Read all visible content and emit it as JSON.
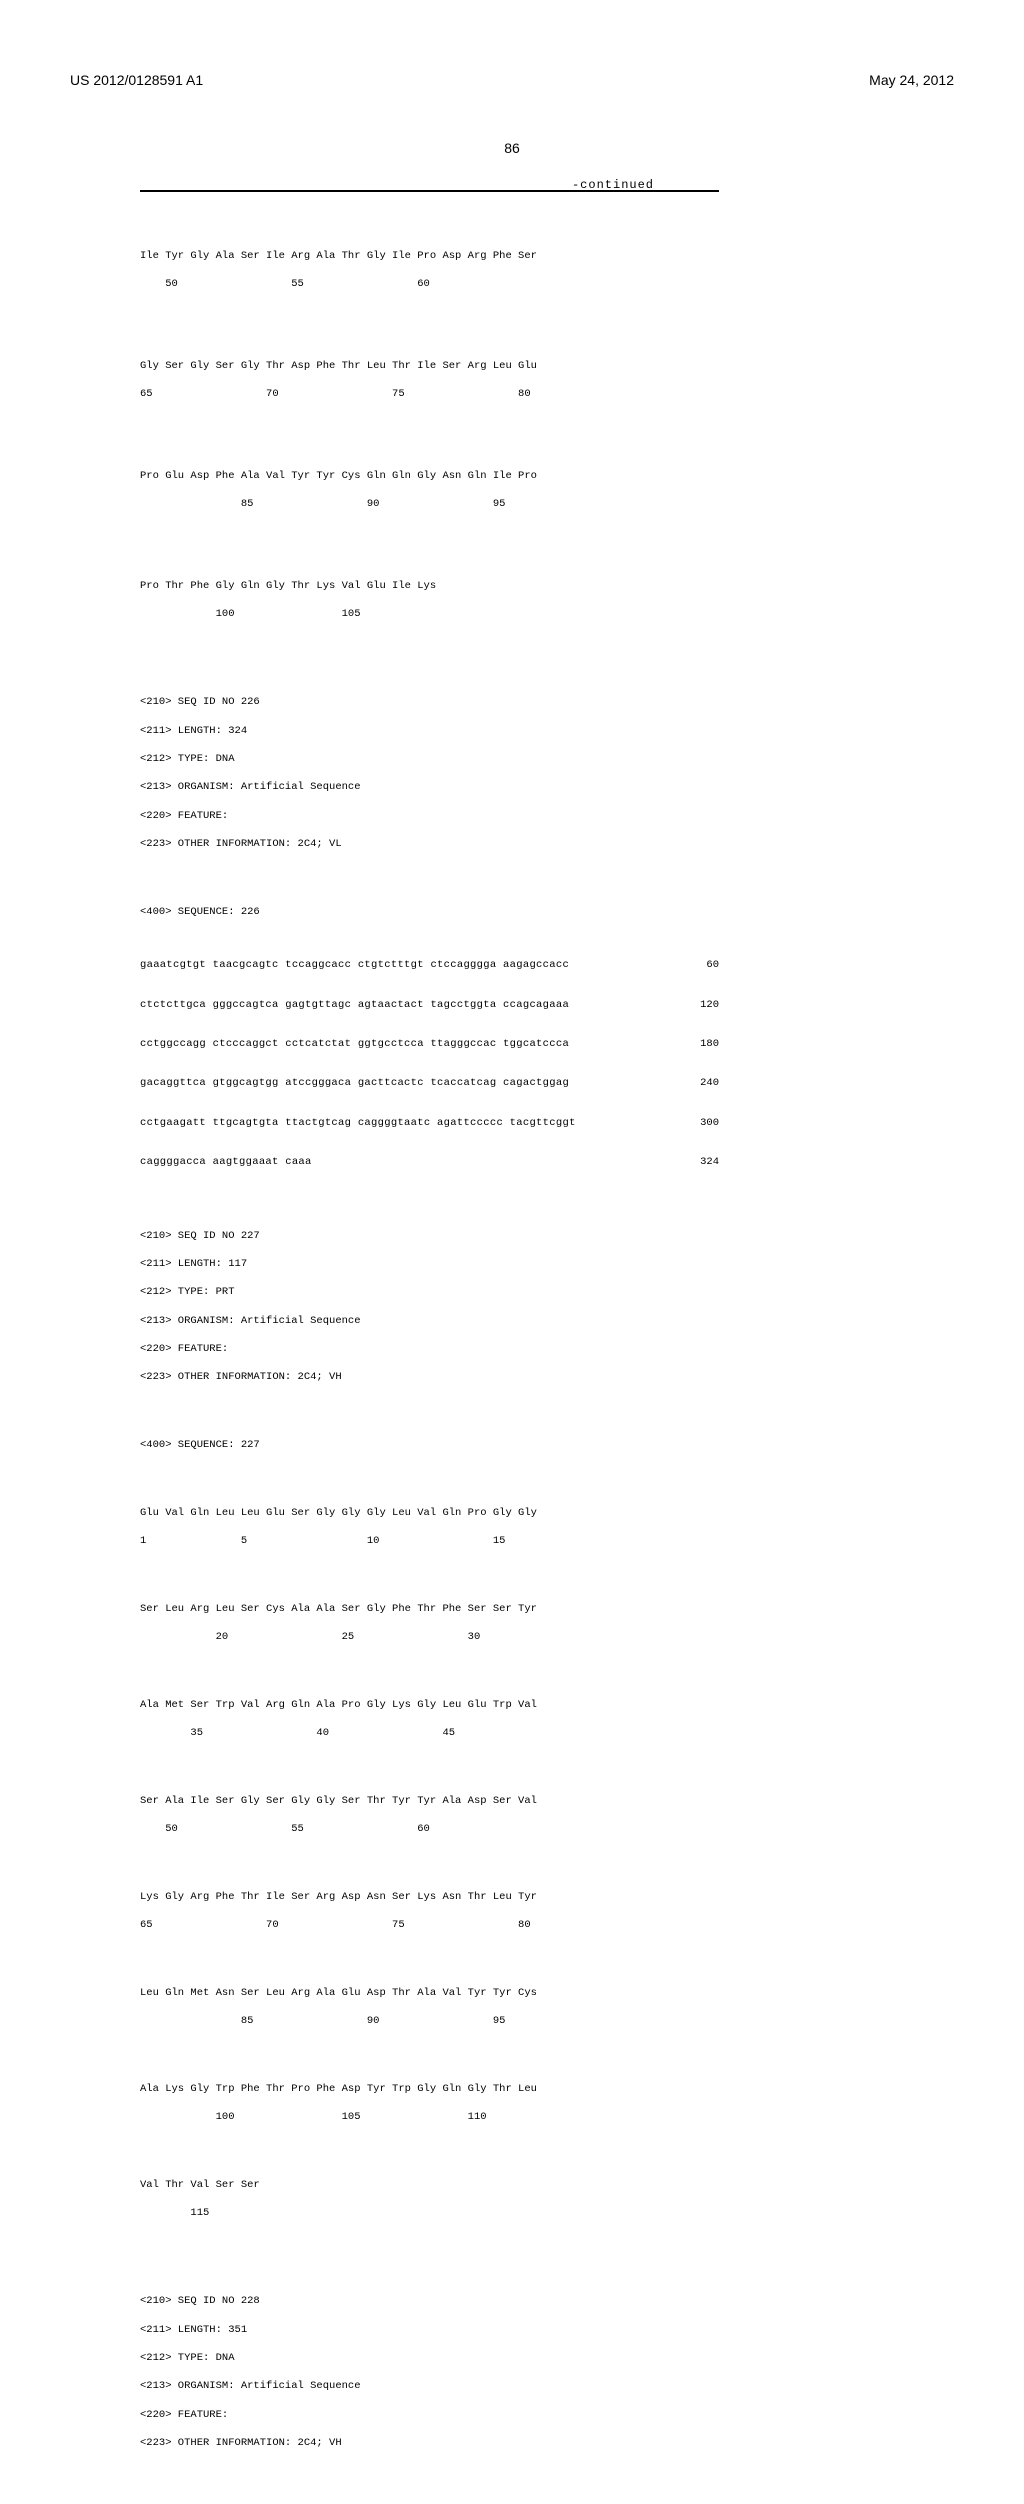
{
  "header": {
    "pub_number": "US 2012/0128591 A1",
    "pub_date": "May 24, 2012"
  },
  "page_number": "86",
  "continued": "-continued",
  "rows": {
    "r1a": "Ile Tyr Gly Ala Ser Ile Arg Ala Thr Gly Ile Pro Asp Arg Phe Ser",
    "r1b": "    50                  55                  60",
    "r2a": "Gly Ser Gly Ser Gly Thr Asp Phe Thr Leu Thr Ile Ser Arg Leu Glu",
    "r2b": "65                  70                  75                  80",
    "r3a": "Pro Glu Asp Phe Ala Val Tyr Tyr Cys Gln Gln Gly Asn Gln Ile Pro",
    "r3b": "                85                  90                  95",
    "r4a": "Pro Thr Phe Gly Gln Gly Thr Lys Val Glu Ile Lys",
    "r4b": "            100                 105",
    "h226_1": "<210> SEQ ID NO 226",
    "h226_2": "<211> LENGTH: 324",
    "h226_3": "<212> TYPE: DNA",
    "h226_4": "<213> ORGANISM: Artificial Sequence",
    "h226_5": "<220> FEATURE:",
    "h226_6": "<223> OTHER INFORMATION: 2C4; VL",
    "h226_7": "<400> SEQUENCE: 226",
    "d1s": "gaaatcgtgt taacgcagtc tccaggcacc ctgtctttgt ctccagggga aagagccacc",
    "d1n": "60",
    "d2s": "ctctcttgca gggccagtca gagtgttagc agtaactact tagcctggta ccagcagaaa",
    "d2n": "120",
    "d3s": "cctggccagg ctcccaggct cctcatctat ggtgcctcca ttagggccac tggcatccca",
    "d3n": "180",
    "d4s": "gacaggttca gtggcagtgg atccgggaca gacttcactc tcaccatcag cagactggag",
    "d4n": "240",
    "d5s": "cctgaagatt ttgcagtgta ttactgtcag caggggtaatc agattccccc tacgttcggt",
    "d5n": "300",
    "d6s": "caggggacca aagtggaaat caaa",
    "d6n": "324",
    "h227_1": "<210> SEQ ID NO 227",
    "h227_2": "<211> LENGTH: 117",
    "h227_3": "<212> TYPE: PRT",
    "h227_4": "<213> ORGANISM: Artificial Sequence",
    "h227_5": "<220> FEATURE:",
    "h227_6": "<223> OTHER INFORMATION: 2C4; VH",
    "h227_7": "<400> SEQUENCE: 227",
    "p1a": "Glu Val Gln Leu Leu Glu Ser Gly Gly Gly Leu Val Gln Pro Gly Gly",
    "p1b": "1               5                   10                  15",
    "p2a": "Ser Leu Arg Leu Ser Cys Ala Ala Ser Gly Phe Thr Phe Ser Ser Tyr",
    "p2b": "            20                  25                  30",
    "p3a": "Ala Met Ser Trp Val Arg Gln Ala Pro Gly Lys Gly Leu Glu Trp Val",
    "p3b": "        35                  40                  45",
    "p4a": "Ser Ala Ile Ser Gly Ser Gly Gly Ser Thr Tyr Tyr Ala Asp Ser Val",
    "p4b": "    50                  55                  60",
    "p5a": "Lys Gly Arg Phe Thr Ile Ser Arg Asp Asn Ser Lys Asn Thr Leu Tyr",
    "p5b": "65                  70                  75                  80",
    "p6a": "Leu Gln Met Asn Ser Leu Arg Ala Glu Asp Thr Ala Val Tyr Tyr Cys",
    "p6b": "                85                  90                  95",
    "p7a": "Ala Lys Gly Trp Phe Thr Pro Phe Asp Tyr Trp Gly Gln Gly Thr Leu",
    "p7b": "            100                 105                 110",
    "p8a": "Val Thr Val Ser Ser",
    "p8b": "        115",
    "h228_1": "<210> SEQ ID NO 228",
    "h228_2": "<211> LENGTH: 351",
    "h228_3": "<212> TYPE: DNA",
    "h228_4": "<213> ORGANISM: Artificial Sequence",
    "h228_5": "<220> FEATURE:",
    "h228_6": "<223> OTHER INFORMATION: 2C4; VH"
  }
}
